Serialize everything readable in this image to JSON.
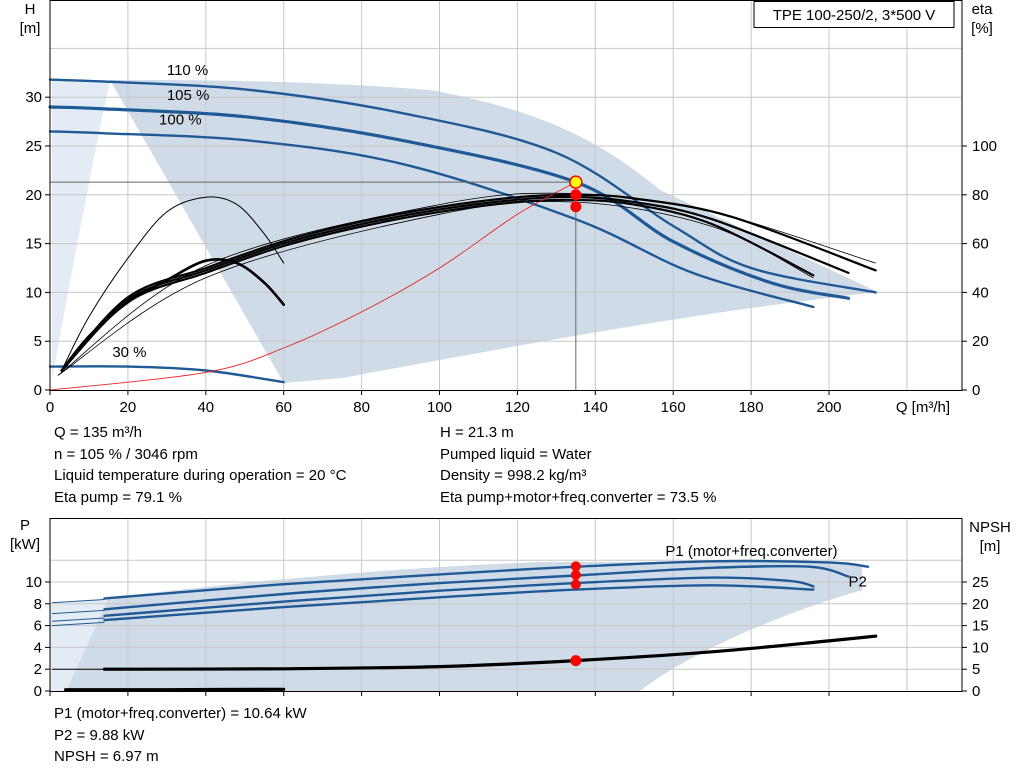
{
  "chart_data": [
    {
      "type": "line",
      "name": "",
      "title": "TPE 100-250/2, 3*500 V",
      "xlabel": "Q [m³/h]",
      "ylabel": "H\n[m]",
      "y2label": "eta\n[%]",
      "xlim": [
        0,
        230
      ],
      "ylim": [
        0,
        35
      ],
      "y2lim": [
        0,
        140
      ],
      "x_ticks": [
        "0",
        "20",
        "40",
        "60",
        "80",
        "100",
        "120",
        "140",
        "160",
        "180",
        "200"
      ],
      "y_ticks": [
        "0",
        "5",
        "10",
        "15",
        "20",
        "25",
        "30"
      ],
      "y2_ticks": [
        "0",
        "20",
        "40",
        "60",
        "80",
        "100"
      ],
      "grid": true,
      "curve_labels": [
        {
          "text": "110 %",
          "x": 30,
          "y": 32.3
        },
        {
          "text": "105 %",
          "x": 30,
          "y": 29.7
        },
        {
          "text": "100 %",
          "x": 28,
          "y": 27.2
        },
        {
          "text": "30 %",
          "x": 16,
          "y": 3.4
        }
      ],
      "series": [
        {
          "role": "head",
          "points": [
            [
              0,
              31.8
            ],
            [
              14,
              31.6
            ],
            [
              50,
              30.8
            ],
            [
              90,
              28.4
            ],
            [
              130,
              24.3
            ],
            [
              160,
              16.8
            ],
            [
              180,
              12.5
            ],
            [
              212,
              10.0
            ]
          ]
        },
        {
          "role": "head",
          "points": [
            [
              0,
              29.0
            ],
            [
              14,
              28.8
            ],
            [
              50,
              28.0
            ],
            [
              90,
              25.6
            ],
            [
              135,
              21.3
            ],
            [
              160,
              15.2
            ],
            [
              185,
              11.0
            ],
            [
              205,
              9.4
            ]
          ]
        },
        {
          "role": "head",
          "points": [
            [
              0,
              26.5
            ],
            [
              14,
              26.3
            ],
            [
              50,
              25.6
            ],
            [
              90,
              23.2
            ],
            [
              135,
              17.5
            ],
            [
              165,
              12.0
            ],
            [
              196,
              8.5
            ]
          ]
        },
        {
          "role": "head",
          "points": [
            [
              0,
              2.4
            ],
            [
              20,
              2.4
            ],
            [
              40,
              2.0
            ],
            [
              60,
              0.8
            ]
          ]
        },
        {
          "role": "eta",
          "points": [
            [
              3,
              8
            ],
            [
              20,
              36
            ],
            [
              40,
              48
            ],
            [
              60,
              59
            ],
            [
              80,
              67
            ],
            [
              100,
              73
            ],
            [
              120,
              77
            ],
            [
              135,
              77.9
            ],
            [
              150,
              76
            ],
            [
              170,
              68
            ],
            [
              196,
              47
            ]
          ]
        },
        {
          "role": "eta",
          "points": [
            [
              3,
              8
            ],
            [
              20,
              37
            ],
            [
              40,
              49
            ],
            [
              60,
              60
            ],
            [
              80,
              68
            ],
            [
              100,
              74
            ],
            [
              120,
              78
            ],
            [
              135,
              79.1
            ],
            [
              150,
              77
            ],
            [
              170,
              70
            ],
            [
              205,
              48
            ]
          ]
        },
        {
          "role": "eta",
          "points": [
            [
              3,
              8
            ],
            [
              20,
              38
            ],
            [
              40,
              50
            ],
            [
              60,
              61
            ],
            [
              80,
              69
            ],
            [
              100,
              75
            ],
            [
              120,
              79
            ],
            [
              135,
              80
            ],
            [
              150,
              78.5
            ],
            [
              175,
              71
            ],
            [
              212,
              49
            ]
          ]
        },
        {
          "role": "eta",
          "points": [
            [
              3,
              8
            ],
            [
              10,
              22
            ],
            [
              20,
              36
            ],
            [
              30,
              45
            ],
            [
              40,
              53
            ],
            [
              48,
              52
            ],
            [
              55,
              44
            ],
            [
              60,
              35
            ]
          ]
        },
        {
          "role": "eta",
          "points": [
            [
              3,
              8
            ],
            [
              10,
              30
            ],
            [
              20,
              54
            ],
            [
              30,
              73
            ],
            [
              40,
              79
            ],
            [
              48,
              76
            ],
            [
              55,
              64
            ],
            [
              60,
              52
            ]
          ]
        },
        {
          "role": "system",
          "points": [
            [
              0,
              0
            ],
            [
              40,
              1.8
            ],
            [
              60,
              4.3
            ],
            [
              80,
              8.0
            ],
            [
              100,
              12.5
            ],
            [
              120,
              18.0
            ],
            [
              135,
              21.3
            ]
          ]
        }
      ],
      "duty_point": {
        "Q": 135,
        "H": 21.3,
        "eta_values": [
          79.1,
          73.5
        ]
      }
    },
    {
      "type": "line",
      "name": "",
      "ylabel": "P\n[kW]",
      "y2label": "NPSH\n[m]",
      "xlim": [
        0,
        230
      ],
      "ylim": [
        0,
        12
      ],
      "y2lim": [
        0,
        30
      ],
      "y_ticks": [
        "0",
        "2",
        "4",
        "6",
        "8",
        "10"
      ],
      "y2_ticks": [
        "0",
        "5",
        "10",
        "15",
        "20",
        "25"
      ],
      "grid": true,
      "curve_labels": [
        {
          "text": "P1 (motor+freq.converter)",
          "x": 158,
          "y": 12.4
        },
        {
          "text": "P2",
          "x": 205,
          "y": 9.6
        }
      ],
      "series": [
        {
          "role": "P1",
          "points": [
            [
              14,
              8.5
            ],
            [
              60,
              9.8
            ],
            [
              100,
              10.7
            ],
            [
              135,
              11.4
            ],
            [
              170,
              11.9
            ],
            [
              200,
              11.8
            ],
            [
              210,
              11.4
            ]
          ]
        },
        {
          "role": "P1",
          "points": [
            [
              14,
              7.5
            ],
            [
              60,
              8.9
            ],
            [
              100,
              9.9
            ],
            [
              135,
              10.6
            ],
            [
              170,
              11.3
            ],
            [
              195,
              11.4
            ],
            [
              205,
              10.5
            ]
          ]
        },
        {
          "role": "P2",
          "points": [
            [
              14,
              6.9
            ],
            [
              60,
              8.2
            ],
            [
              100,
              9.2
            ],
            [
              135,
              9.9
            ],
            [
              170,
              10.4
            ],
            [
              190,
              10.1
            ],
            [
              196,
              9.6
            ]
          ]
        },
        {
          "role": "P2",
          "points": [
            [
              14,
              6.5
            ],
            [
              60,
              7.7
            ],
            [
              100,
              8.6
            ],
            [
              135,
              9.3
            ],
            [
              170,
              9.7
            ],
            [
              196,
              9.3
            ]
          ]
        },
        {
          "role": "NPSH",
          "points": [
            [
              14,
              5.0
            ],
            [
              60,
              5.1
            ],
            [
              100,
              5.6
            ],
            [
              135,
              6.97
            ],
            [
              170,
              9.0
            ],
            [
              200,
              11.5
            ],
            [
              212,
              12.6
            ]
          ]
        },
        {
          "role": "NPSH",
          "points": [
            [
              4,
              0.3
            ],
            [
              30,
              0.3
            ],
            [
              60,
              0.4
            ]
          ]
        }
      ],
      "duty_point": {
        "Q": 135,
        "P1": 10.64,
        "P2": 9.88,
        "NPSH": 6.97
      }
    }
  ],
  "info": {
    "left": [
      "Q = 135 m³/h",
      "n = 105 % / 3046 rpm",
      "Liquid temperature during operation = 20 °C",
      "Eta pump = 79.1 %"
    ],
    "right": [
      "H = 21.3 m",
      "Pumped liquid = Water",
      "Density = 998.2 kg/m³",
      "Eta pump+motor+freq.converter = 73.5 %"
    ],
    "lower": [
      "P1 (motor+freq.converter) = 10.64 kW",
      "P2 = 9.88 kW",
      "NPSH = 6.97 m"
    ]
  },
  "colors": {
    "curve_blue": "#1f5a96",
    "region_fill": "#cfdbe7",
    "region_light": "#e3ecf4",
    "eta_black": "#000000",
    "system_red": "#ee2222",
    "grid": "#c8c8c8",
    "duty_marker": "#ff0000",
    "duty_highlight": "#ffff00"
  }
}
